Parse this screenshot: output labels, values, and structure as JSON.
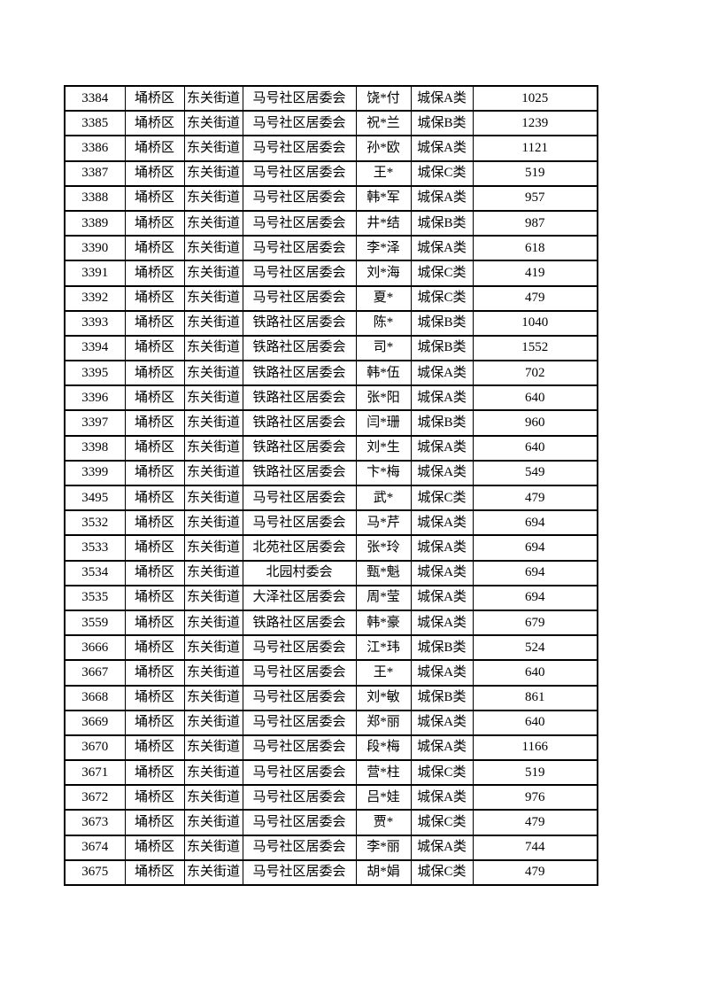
{
  "page": {
    "background_color": "#ffffff",
    "border_color": "#000000",
    "text_color": "#000000"
  },
  "document": {
    "table": {
      "rows": [
        {
          "id": "3384",
          "district": "埇桥区",
          "street": "东关街道",
          "committee": "马号社区居委会",
          "name": "饶*付",
          "category": "城保A类",
          "amount": "1025"
        },
        {
          "id": "3385",
          "district": "埇桥区",
          "street": "东关街道",
          "committee": "马号社区居委会",
          "name": "祝*兰",
          "category": "城保B类",
          "amount": "1239"
        },
        {
          "id": "3386",
          "district": "埇桥区",
          "street": "东关街道",
          "committee": "马号社区居委会",
          "name": "孙*欧",
          "category": "城保A类",
          "amount": "1121"
        },
        {
          "id": "3387",
          "district": "埇桥区",
          "street": "东关街道",
          "committee": "马号社区居委会",
          "name": "王*",
          "category": "城保C类",
          "amount": "519"
        },
        {
          "id": "3388",
          "district": "埇桥区",
          "street": "东关街道",
          "committee": "马号社区居委会",
          "name": "韩*军",
          "category": "城保A类",
          "amount": "957"
        },
        {
          "id": "3389",
          "district": "埇桥区",
          "street": "东关街道",
          "committee": "马号社区居委会",
          "name": "井*结",
          "category": "城保B类",
          "amount": "987"
        },
        {
          "id": "3390",
          "district": "埇桥区",
          "street": "东关街道",
          "committee": "马号社区居委会",
          "name": "李*泽",
          "category": "城保A类",
          "amount": "618"
        },
        {
          "id": "3391",
          "district": "埇桥区",
          "street": "东关街道",
          "committee": "马号社区居委会",
          "name": "刘*海",
          "category": "城保C类",
          "amount": "419"
        },
        {
          "id": "3392",
          "district": "埇桥区",
          "street": "东关街道",
          "committee": "马号社区居委会",
          "name": "夏*",
          "category": "城保C类",
          "amount": "479"
        },
        {
          "id": "3393",
          "district": "埇桥区",
          "street": "东关街道",
          "committee": "铁路社区居委会",
          "name": "陈*",
          "category": "城保B类",
          "amount": "1040"
        },
        {
          "id": "3394",
          "district": "埇桥区",
          "street": "东关街道",
          "committee": "铁路社区居委会",
          "name": "司*",
          "category": "城保B类",
          "amount": "1552"
        },
        {
          "id": "3395",
          "district": "埇桥区",
          "street": "东关街道",
          "committee": "铁路社区居委会",
          "name": "韩*伍",
          "category": "城保A类",
          "amount": "702"
        },
        {
          "id": "3396",
          "district": "埇桥区",
          "street": "东关街道",
          "committee": "铁路社区居委会",
          "name": "张*阳",
          "category": "城保A类",
          "amount": "640"
        },
        {
          "id": "3397",
          "district": "埇桥区",
          "street": "东关街道",
          "committee": "铁路社区居委会",
          "name": "闫*珊",
          "category": "城保B类",
          "amount": "960"
        },
        {
          "id": "3398",
          "district": "埇桥区",
          "street": "东关街道",
          "committee": "铁路社区居委会",
          "name": "刘*生",
          "category": "城保A类",
          "amount": "640"
        },
        {
          "id": "3399",
          "district": "埇桥区",
          "street": "东关街道",
          "committee": "铁路社区居委会",
          "name": "卞*梅",
          "category": "城保A类",
          "amount": "549"
        },
        {
          "id": "3495",
          "district": "埇桥区",
          "street": "东关街道",
          "committee": "马号社区居委会",
          "name": "武*",
          "category": "城保C类",
          "amount": "479"
        },
        {
          "id": "3532",
          "district": "埇桥区",
          "street": "东关街道",
          "committee": "马号社区居委会",
          "name": "马*芹",
          "category": "城保A类",
          "amount": "694"
        },
        {
          "id": "3533",
          "district": "埇桥区",
          "street": "东关街道",
          "committee": "北苑社区居委会",
          "name": "张*玲",
          "category": "城保A类",
          "amount": "694"
        },
        {
          "id": "3534",
          "district": "埇桥区",
          "street": "东关街道",
          "committee": "北园村委会",
          "name": "甄*魁",
          "category": "城保A类",
          "amount": "694"
        },
        {
          "id": "3535",
          "district": "埇桥区",
          "street": "东关街道",
          "committee": "大泽社区居委会",
          "name": "周*莹",
          "category": "城保A类",
          "amount": "694"
        },
        {
          "id": "3559",
          "district": "埇桥区",
          "street": "东关街道",
          "committee": "铁路社区居委会",
          "name": "韩*豪",
          "category": "城保A类",
          "amount": "679"
        },
        {
          "id": "3666",
          "district": "埇桥区",
          "street": "东关街道",
          "committee": "马号社区居委会",
          "name": "江*玮",
          "category": "城保B类",
          "amount": "524"
        },
        {
          "id": "3667",
          "district": "埇桥区",
          "street": "东关街道",
          "committee": "马号社区居委会",
          "name": "王*",
          "category": "城保A类",
          "amount": "640"
        },
        {
          "id": "3668",
          "district": "埇桥区",
          "street": "东关街道",
          "committee": "马号社区居委会",
          "name": "刘*敏",
          "category": "城保B类",
          "amount": "861"
        },
        {
          "id": "3669",
          "district": "埇桥区",
          "street": "东关街道",
          "committee": "马号社区居委会",
          "name": "郑*丽",
          "category": "城保A类",
          "amount": "640"
        },
        {
          "id": "3670",
          "district": "埇桥区",
          "street": "东关街道",
          "committee": "马号社区居委会",
          "name": "段*梅",
          "category": "城保A类",
          "amount": "1166"
        },
        {
          "id": "3671",
          "district": "埇桥区",
          "street": "东关街道",
          "committee": "马号社区居委会",
          "name": "营*柱",
          "category": "城保C类",
          "amount": "519"
        },
        {
          "id": "3672",
          "district": "埇桥区",
          "street": "东关街道",
          "committee": "马号社区居委会",
          "name": "吕*娃",
          "category": "城保A类",
          "amount": "976"
        },
        {
          "id": "3673",
          "district": "埇桥区",
          "street": "东关街道",
          "committee": "马号社区居委会",
          "name": "贾*",
          "category": "城保C类",
          "amount": "479"
        },
        {
          "id": "3674",
          "district": "埇桥区",
          "street": "东关街道",
          "committee": "马号社区居委会",
          "name": "李*丽",
          "category": "城保A类",
          "amount": "744"
        },
        {
          "id": "3675",
          "district": "埇桥区",
          "street": "东关街道",
          "committee": "马号社区居委会",
          "name": "胡*娟",
          "category": "城保C类",
          "amount": "479"
        }
      ]
    }
  }
}
